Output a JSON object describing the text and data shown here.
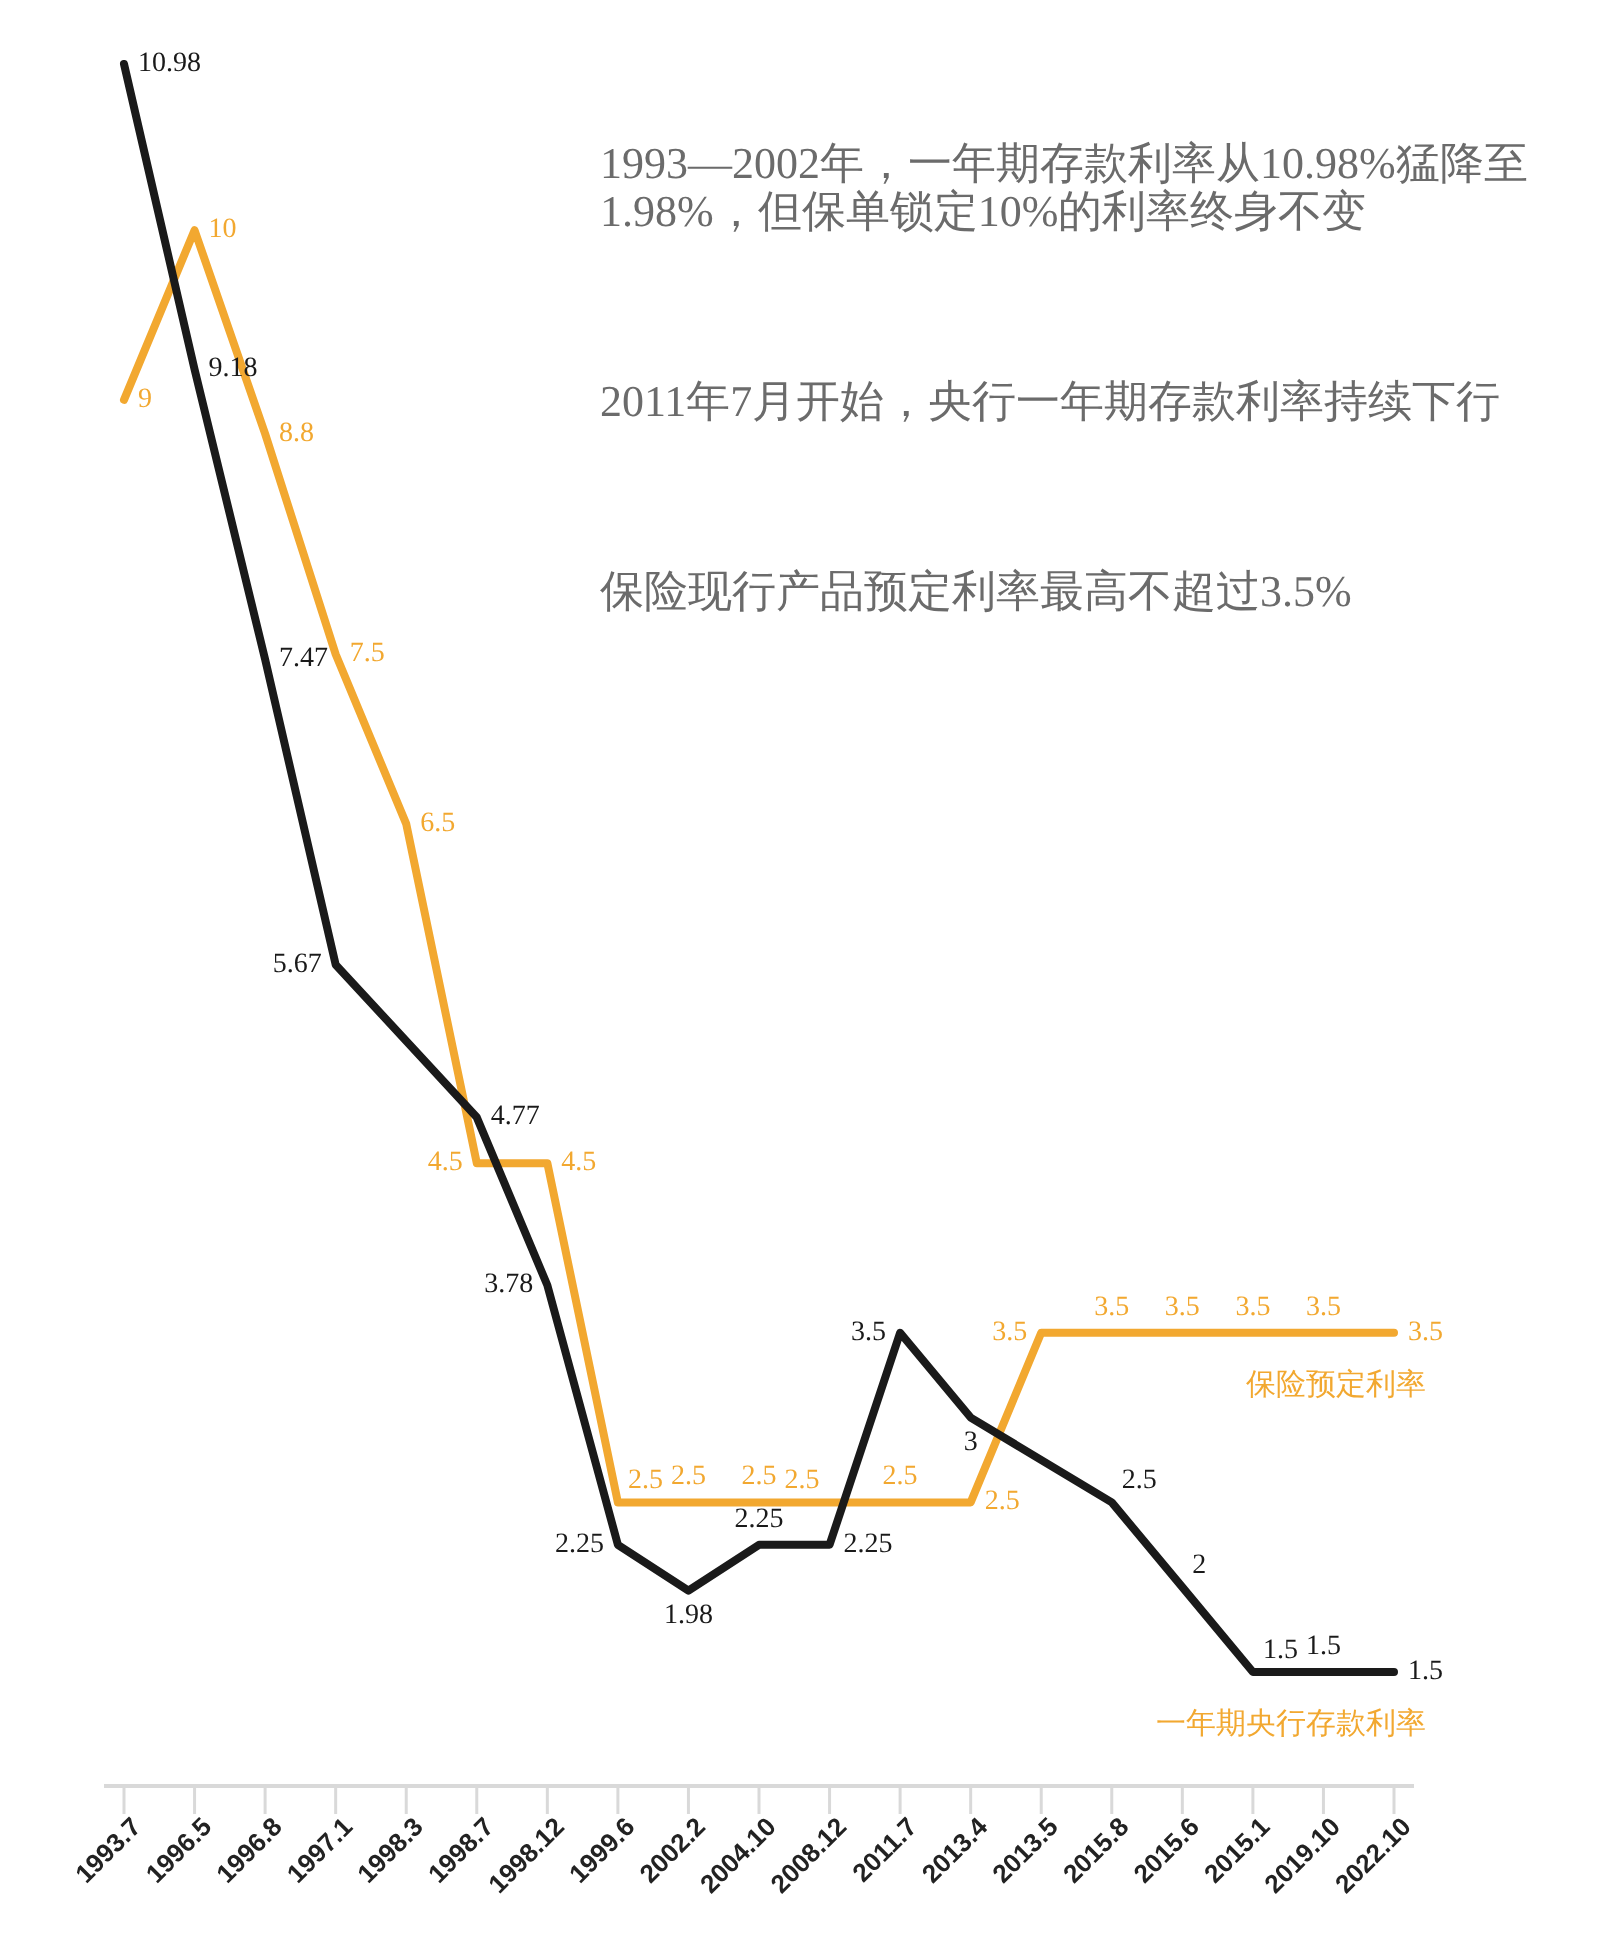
{
  "chart_data": {
    "type": "line",
    "categories": [
      "1993.7",
      "1996.5",
      "1996.8",
      "1997.1",
      "1998.3",
      "1998.7",
      "1998.12",
      "1999.6",
      "2002.2",
      "2004.10",
      "2008.12",
      "2011.7",
      "2013.4",
      "2013.5",
      "2015.8",
      "2015.6",
      "2015.1",
      "2019.10",
      "2022.10"
    ],
    "series": [
      {
        "name": "保险预定利率",
        "color": "#f2a830",
        "values": [
          9,
          10,
          8.8,
          7.5,
          6.5,
          4.5,
          4.5,
          2.5,
          2.5,
          2.5,
          2.5,
          2.5,
          2.5,
          3.5,
          3.5,
          3.5,
          3.5,
          3.5,
          3.5
        ]
      },
      {
        "name": "一年期央行存款利率",
        "color": "#1a1a1a",
        "values": [
          10.98,
          9.18,
          7.47,
          5.67,
          null,
          4.77,
          3.78,
          2.25,
          1.98,
          2.25,
          2.25,
          3.5,
          3,
          null,
          2.5,
          2,
          1.5,
          1.5,
          1.5
        ]
      }
    ],
    "data_labels": true,
    "tick_labels": "x",
    "legend": "bottom right",
    "annotations": [
      "1993—2002年，一年期存款利率从10.98%猛降至1.98%，但保单锁定10%的利率终身不变",
      "2011年7月开始，央行一年期存款利率持续下行",
      "保险现行产品预定利率最高不超过3.5%"
    ]
  }
}
